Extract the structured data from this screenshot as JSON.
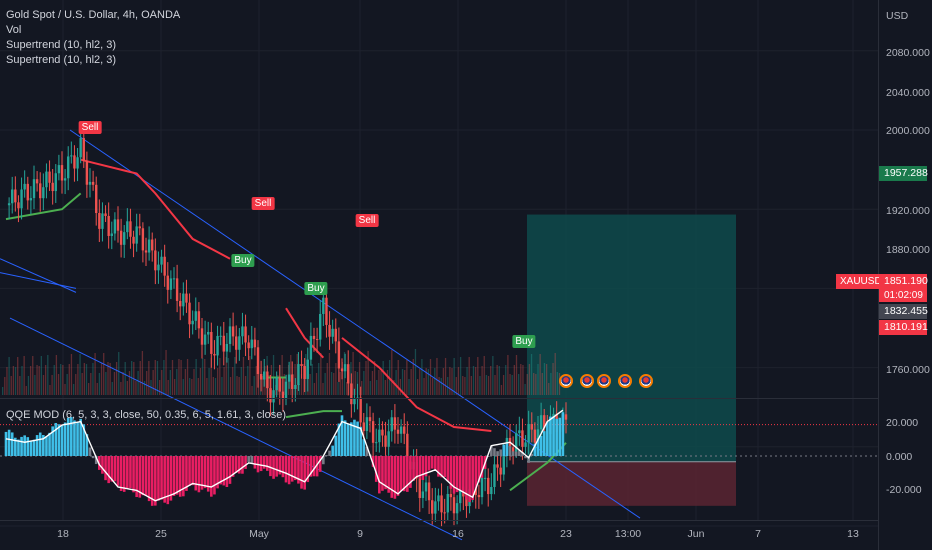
{
  "header": {
    "title": "Gold Spot / U.S. Dollar, 4h, OANDA",
    "indicators": [
      "Vol",
      "Supertrend (10, hl2, 3)",
      "Supertrend (10, hl2, 3)"
    ]
  },
  "qqe_label": "QQE MOD (6, 5, 3, 3, close, 50, 0.35, 6, 5, 1.61, 3, close)",
  "price_axis": {
    "currency": "USD",
    "ticks": [
      "2080.000",
      "2040.000",
      "2000.000",
      "1920.000",
      "1880.000",
      "1760.000"
    ]
  },
  "price_labels": {
    "target": "1957.288",
    "symbol": "XAUUSD",
    "last": "1851.190",
    "countdown": "01:02:09",
    "entry": "1832.455",
    "stop": "1810.191"
  },
  "qqe_axis": {
    "ticks": [
      "20.000",
      "0.000",
      "-20.000"
    ]
  },
  "time_axis": {
    "ticks": [
      "18",
      "25",
      "May",
      "9",
      "16",
      "23",
      "13:00",
      "Jun",
      "7",
      "13"
    ]
  },
  "signals": [
    {
      "label": "Sell"
    },
    {
      "label": "Sell"
    },
    {
      "label": "Sell"
    },
    {
      "label": "Buy"
    },
    {
      "label": "Buy"
    },
    {
      "label": "Buy"
    }
  ],
  "colors": {
    "background": "#131722",
    "bull": "#26a69a",
    "bear": "#ef5350",
    "supertrend_up": "#4caf50",
    "supertrend_down": "#f23645",
    "channel": "#2962ff",
    "qqe_bull": "#3fbfe8",
    "qqe_bear": "#e91e63",
    "qqe_neutral": "#787b86",
    "long_target_zone": "#0e4a4b",
    "long_stop_zone": "#5a2531"
  },
  "chart_data": [
    {
      "type": "candlestick",
      "title": "Gold Spot / U.S. Dollar, 4h, OANDA",
      "ylabel": "USD",
      "ylim": [
        1735,
        2110
      ],
      "x": [
        "Apr 12",
        "Apr 13",
        "Apr 14",
        "Apr 15",
        "Apr 18",
        "Apr 19",
        "Apr 20",
        "Apr 21",
        "Apr 22",
        "Apr 25",
        "Apr 26",
        "Apr 27",
        "Apr 28",
        "Apr 29",
        "May 2",
        "May 3",
        "May 4",
        "May 5",
        "May 6",
        "May 9",
        "May 10",
        "May 11",
        "May 12",
        "May 13",
        "May 16",
        "May 17",
        "May 18",
        "May 19",
        "May 20",
        "May 23",
        "May 24"
      ],
      "close": [
        1962,
        1968,
        1972,
        1978,
        1990,
        1955,
        1948,
        1948,
        1935,
        1920,
        1905,
        1890,
        1895,
        1895,
        1868,
        1870,
        1880,
        1910,
        1880,
        1855,
        1843,
        1852,
        1822,
        1810,
        1812,
        1818,
        1822,
        1842,
        1846,
        1852,
        1851.19
      ],
      "supertrend": {
        "up_segments": [
          {
            "x": [
              "Apr 12",
              "Apr 15",
              "Apr 18"
            ],
            "y": [
              1955,
              1960,
              1968
            ]
          },
          {
            "x": [
              "May 2",
              "May 3"
            ],
            "y": [
              1875,
              1875
            ]
          },
          {
            "x": [
              "May 3",
              "May 5",
              "May 6"
            ],
            "y": [
              1855,
              1858,
              1858
            ]
          },
          {
            "x": [
              "May 19",
              "May 20",
              "May 23",
              "May 24"
            ],
            "y": [
              1818,
              1825,
              1832,
              1842
            ]
          }
        ],
        "down_segments": [
          {
            "x": [
              "Apr 18",
              "Apr 21",
              "Apr 22",
              "Apr 26",
              "Apr 28"
            ],
            "y": [
              1985,
              1978,
              1968,
              1945,
              1935
            ]
          },
          {
            "x": [
              "May 3",
              "May 4",
              "May 5"
            ],
            "y": [
              1910,
              1895,
              1885
            ]
          },
          {
            "x": [
              "May 6",
              "May 10",
              "May 12",
              "May 16",
              "May 18"
            ],
            "y": [
              1895,
              1880,
              1860,
              1850,
              1848
            ]
          }
        ]
      },
      "signals": [
        {
          "type": "Sell",
          "x": "Apr 18",
          "y": 1995
        },
        {
          "type": "Sell",
          "x": "May 2",
          "y": 1925
        },
        {
          "type": "Sell",
          "x": "May 9",
          "y": 1915
        },
        {
          "type": "Buy",
          "x": "May 2",
          "y": 1870
        },
        {
          "type": "Buy",
          "x": "May 5",
          "y": 1860
        },
        {
          "type": "Buy",
          "x": "May 19",
          "y": 1815
        }
      ],
      "long_position": {
        "entry": 1832.455,
        "target": 1957.288,
        "stop": 1810.191,
        "last": 1851.19
      }
    },
    {
      "type": "histogram",
      "title": "QQE MOD (6, 5, 3, 3, close, 50, 0.35, 6, 5, 1.61, 3, close)",
      "ylim": [
        -35,
        35
      ],
      "x": [
        "Apr 12",
        "Apr 13",
        "Apr 14",
        "Apr 15",
        "Apr 18",
        "Apr 19",
        "Apr 20",
        "Apr 21",
        "Apr 22",
        "Apr 25",
        "Apr 26",
        "Apr 27",
        "Apr 28",
        "Apr 29",
        "May 2",
        "May 3",
        "May 4",
        "May 5",
        "May 6",
        "May 9",
        "May 10",
        "May 11",
        "May 12",
        "May 13",
        "May 16",
        "May 17",
        "May 18",
        "May 19",
        "May 20",
        "May 23",
        "May 24"
      ],
      "histogram": [
        14,
        10,
        12,
        20,
        22,
        -10,
        -18,
        -22,
        -28,
        -25,
        -18,
        -22,
        -15,
        -5,
        -10,
        -14,
        -18,
        -6,
        22,
        18,
        -20,
        -24,
        -14,
        -8,
        -20,
        -26,
        4,
        6,
        -2,
        20,
        26
      ],
      "qqe_line": [
        10,
        8,
        10,
        18,
        20,
        -5,
        -18,
        -20,
        -26,
        -22,
        -16,
        -18,
        -12,
        -4,
        -6,
        -10,
        -15,
        0,
        20,
        16,
        -15,
        -22,
        -12,
        -8,
        -18,
        -24,
        6,
        8,
        -1,
        20,
        28
      ]
    }
  ]
}
